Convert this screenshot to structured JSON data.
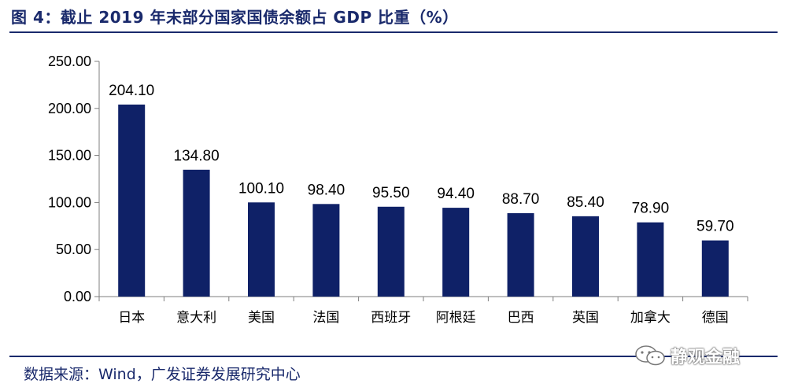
{
  "header": {
    "title": "图 4：截止 2019 年末部分国家国债余额占 GDP 比重（%）"
  },
  "footer": {
    "source": "数据来源：Wind，广发证券发展研究中心",
    "watermark": "静观金融"
  },
  "colors": {
    "bar": "#0f2167",
    "title": "#1a2a6c",
    "axis": "#7f7f7f"
  },
  "chart_data": {
    "type": "bar",
    "title": "截止 2019 年末部分国家国债余额占 GDP 比重（%）",
    "categories": [
      "日本",
      "意大利",
      "美国",
      "法国",
      "西班牙",
      "阿根廷",
      "巴西",
      "英国",
      "加拿大",
      "德国"
    ],
    "values": [
      204.1,
      134.8,
      100.1,
      98.4,
      95.5,
      94.4,
      88.7,
      85.4,
      78.9,
      59.7
    ],
    "data_labels": [
      "204.10",
      "134.80",
      "100.10",
      "98.40",
      "95.50",
      "94.40",
      "88.70",
      "85.40",
      "78.90",
      "59.70"
    ],
    "yticks": [
      0,
      50,
      100,
      150,
      200,
      250
    ],
    "ytick_labels": [
      "0.00",
      "50.00",
      "100.00",
      "150.00",
      "200.00",
      "250.00"
    ],
    "ylim": [
      0,
      250
    ],
    "xlabel": "",
    "ylabel": "",
    "grid": false,
    "legend": false
  }
}
